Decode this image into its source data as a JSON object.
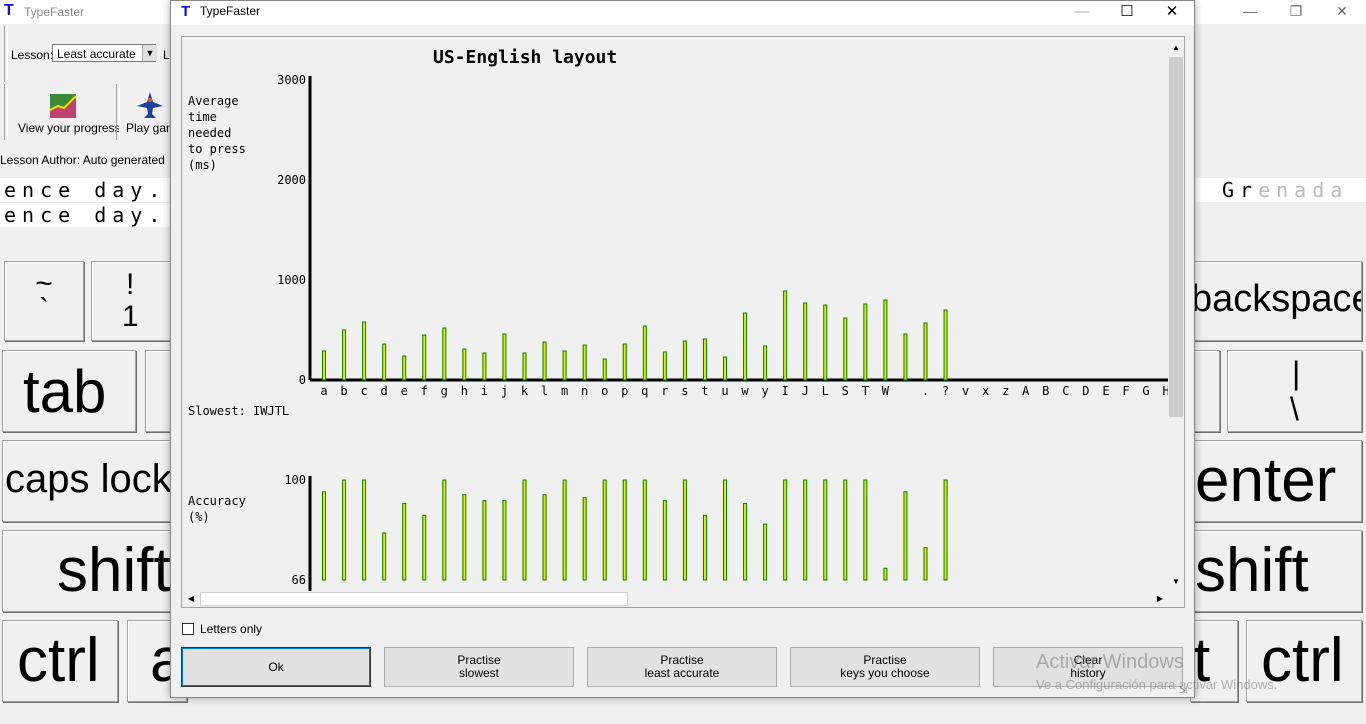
{
  "main_window": {
    "title": "TypeFaster",
    "app_icon_letter": "T",
    "lesson_label": "Lesson:",
    "lesson_value": "Least accurate",
    "lesson_clipped_char": "L",
    "view_progress_label": "View your progress",
    "play_game_label": "Play gam",
    "lesson_author": "Lesson Author: Auto generated",
    "text_line_1": "ence day.",
    "text_line_2": "ence day.",
    "text_right_typed": "Gr",
    "text_right_pending": "enada"
  },
  "keyboard": {
    "tilde_top": "~",
    "tilde_bottom": "`",
    "one_top": "!",
    "one_bottom": "1",
    "tab": "tab",
    "caps_lock": "caps lock",
    "shift_left": "shift",
    "ctrl_left": "ctrl",
    "alt_left": "a",
    "backspace": "backspace",
    "pipe_top": "|",
    "pipe_bottom": "\\",
    "enter": "enter",
    "shift_right": "shift",
    "alt_right": "t",
    "ctrl_right": "ctrl"
  },
  "dialog": {
    "title": "TypeFaster",
    "icon_letter": "T",
    "letters_only_label": "Letters only",
    "letters_only_checked": false,
    "buttons": {
      "ok": "Ok",
      "practise_slowest_1": "Practise",
      "practise_slowest_2": "slowest",
      "practise_least_accurate_1": "Practise",
      "practise_least_accurate_2": "least accurate",
      "practise_keys_choose_1": "Practise",
      "practise_keys_choose_2": "keys you choose",
      "clear_history_1": "Clear",
      "clear_history_2": "history"
    }
  },
  "watermark": {
    "title": "Activar Windows",
    "subtitle": "Ve a Configuración para activar Windows."
  },
  "colors": {
    "bar_fill": "#e8e800",
    "bar_stroke": "#008000",
    "axis": "#000000",
    "title_blue": "#1010c8"
  },
  "chart_data": [
    {
      "type": "bar",
      "title": "US-English layout",
      "ylabel_lines": [
        "Average",
        "time",
        "needed",
        "to press",
        "(ms)"
      ],
      "ylim": [
        0,
        3000
      ],
      "yticks": [
        0,
        1000,
        2000,
        3000
      ],
      "categories": [
        "a",
        "b",
        "c",
        "d",
        "e",
        "f",
        "g",
        "h",
        "i",
        "j",
        "k",
        "l",
        "m",
        "n",
        "o",
        "p",
        "q",
        "r",
        "s",
        "t",
        "u",
        "w",
        "y",
        "I",
        "J",
        "L",
        "S",
        "T",
        "W",
        " ",
        ".",
        "?",
        "v",
        "x",
        "z",
        "A",
        "B",
        "C",
        "D",
        "E",
        "F",
        "G",
        "H"
      ],
      "values": [
        290,
        500,
        580,
        360,
        240,
        450,
        520,
        310,
        270,
        460,
        270,
        380,
        290,
        350,
        210,
        360,
        540,
        280,
        390,
        410,
        230,
        670,
        340,
        890,
        770,
        750,
        620,
        760,
        800,
        460,
        570,
        700,
        0,
        0,
        0,
        0,
        0,
        0,
        0,
        0,
        0,
        0,
        0
      ],
      "annotation": "Slowest: IWJTL"
    },
    {
      "type": "bar",
      "ylabel_lines": [
        "Accuracy",
        "(%)"
      ],
      "ylim": [
        66,
        100
      ],
      "yticks": [
        66,
        100
      ],
      "categories": [
        "a",
        "b",
        "c",
        "d",
        "e",
        "f",
        "g",
        "h",
        "i",
        "j",
        "k",
        "l",
        "m",
        "n",
        "o",
        "p",
        "q",
        "r",
        "s",
        "t",
        "u",
        "w",
        "y",
        "I",
        "J",
        "L",
        "S",
        "T",
        "W",
        " ",
        ".",
        "?"
      ],
      "values": [
        96,
        100,
        100,
        82,
        92,
        88,
        100,
        95,
        93,
        93,
        100,
        95,
        100,
        94,
        100,
        100,
        100,
        93,
        100,
        88,
        100,
        92,
        85,
        100,
        100,
        100,
        100,
        100,
        70,
        96,
        77,
        100
      ]
    }
  ]
}
